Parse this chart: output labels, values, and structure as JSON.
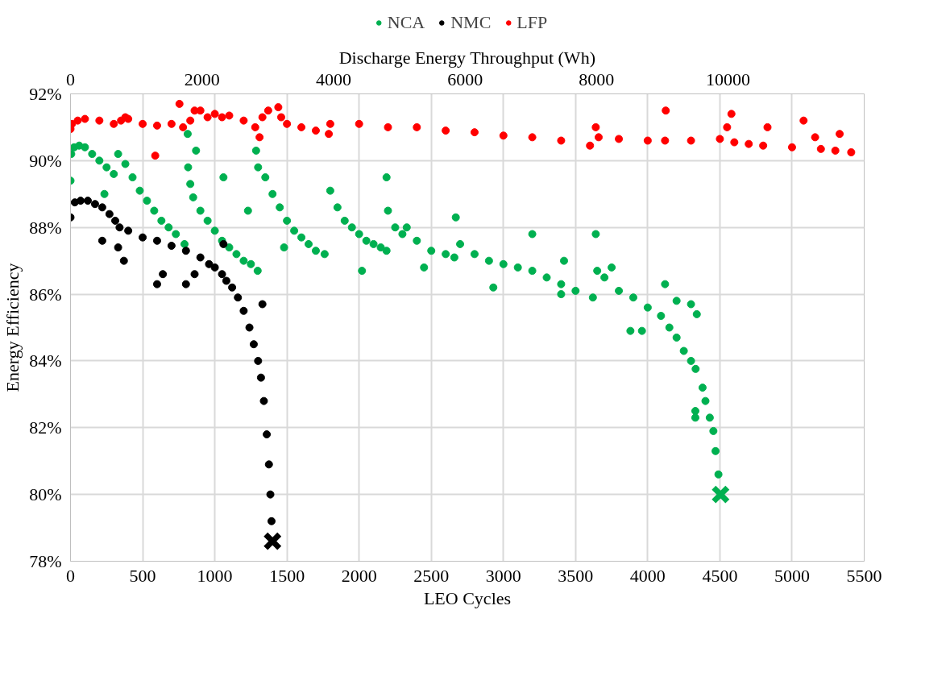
{
  "chart_data": {
    "type": "scatter",
    "xlabel": "LEO Cycles",
    "ylabel": "Energy Efficiency",
    "x2label": "Discharge Energy Throughput (Wh)",
    "xlim": [
      0,
      5500
    ],
    "xticks": [
      0,
      500,
      1000,
      1500,
      2000,
      2500,
      3000,
      3500,
      4000,
      4500,
      5000,
      5500
    ],
    "x2lim": [
      0,
      12070
    ],
    "x2ticks": [
      0,
      2000,
      4000,
      6000,
      8000,
      10000
    ],
    "ylim": [
      78,
      92
    ],
    "yticks": [
      {
        "value": 78,
        "label": "78%"
      },
      {
        "value": 80,
        "label": "80%"
      },
      {
        "value": 82,
        "label": "82%"
      },
      {
        "value": 84,
        "label": "84%"
      },
      {
        "value": 86,
        "label": "86%"
      },
      {
        "value": 88,
        "label": "88%"
      },
      {
        "value": 90,
        "label": "90%"
      },
      {
        "value": 92,
        "label": "92%"
      }
    ],
    "grid": true,
    "legend": "top",
    "marker": "circle",
    "series": [
      {
        "name": "NCA",
        "color": "#00b050",
        "x": [
          0,
          5,
          25,
          60,
          100,
          150,
          200,
          235,
          250,
          300,
          330,
          380,
          430,
          480,
          530,
          580,
          630,
          680,
          730,
          790,
          812,
          815,
          830,
          850,
          870,
          900,
          950,
          1000,
          1050,
          1060,
          1100,
          1150,
          1200,
          1230,
          1250,
          1297,
          1286,
          1300,
          1350,
          1400,
          1450,
          1480,
          1500,
          1550,
          1600,
          1650,
          1700,
          1761,
          1800,
          1850,
          1900,
          1950,
          2000,
          2020,
          2050,
          2100,
          2150,
          2190,
          2190,
          2200,
          2250,
          2300,
          2330,
          2400,
          2450,
          2500,
          2600,
          2660,
          2670,
          2700,
          2800,
          2900,
          2930,
          3000,
          3100,
          3200,
          3200,
          3300,
          3400,
          3400,
          3420,
          3500,
          3620,
          3640,
          3650,
          3700,
          3750,
          3800,
          3880,
          3900,
          3960,
          4000,
          4092,
          4120,
          4150,
          4200,
          4200,
          4250,
          4300,
          4300,
          4330,
          4330,
          4332,
          4340,
          4380,
          4400,
          4430,
          4455,
          4470,
          4490
        ],
        "values": [
          89.4,
          90.2,
          90.4,
          90.45,
          90.4,
          90.2,
          90.0,
          89.0,
          89.8,
          89.6,
          90.2,
          89.9,
          89.5,
          89.1,
          88.8,
          88.5,
          88.2,
          88.0,
          87.8,
          87.5,
          90.8,
          89.8,
          89.3,
          88.9,
          90.3,
          88.5,
          88.2,
          87.9,
          87.6,
          89.5,
          87.4,
          87.2,
          87.0,
          88.5,
          86.9,
          86.7,
          90.3,
          89.8,
          89.5,
          89.0,
          88.6,
          87.4,
          88.2,
          87.9,
          87.7,
          87.5,
          87.3,
          87.2,
          89.1,
          88.6,
          88.2,
          88.0,
          87.8,
          86.7,
          87.6,
          87.5,
          87.4,
          87.3,
          89.5,
          88.5,
          88.0,
          87.8,
          88.0,
          87.6,
          86.8,
          87.3,
          87.2,
          87.1,
          88.3,
          87.5,
          87.2,
          87.0,
          86.2,
          86.9,
          86.8,
          86.7,
          87.8,
          86.5,
          86.3,
          86.0,
          87.0,
          86.1,
          85.9,
          87.8,
          86.7,
          86.5,
          86.8,
          86.1,
          84.9,
          85.9,
          84.9,
          85.6,
          85.35,
          86.3,
          85.0,
          84.7,
          85.8,
          84.3,
          84.0,
          85.7,
          82.5,
          82.3,
          83.76,
          85.4,
          83.2,
          82.8,
          82.3,
          81.9,
          81.3,
          80.6
        ]
      },
      {
        "name": "NMC",
        "color": "#000000",
        "x": [
          0,
          30,
          70,
          120,
          170,
          220,
          220,
          270,
          310,
          330,
          340,
          370,
          400,
          500,
          600,
          600,
          640,
          700,
          800,
          800,
          860,
          900,
          960,
          1000,
          1050,
          1060,
          1080,
          1120,
          1160,
          1200,
          1240,
          1270,
          1300,
          1320,
          1330,
          1340,
          1360,
          1375,
          1385,
          1393
        ],
        "values": [
          88.3,
          88.75,
          88.8,
          88.8,
          88.7,
          88.6,
          87.6,
          88.4,
          88.2,
          87.4,
          88.0,
          87.0,
          87.9,
          87.7,
          87.6,
          86.3,
          86.6,
          87.45,
          87.3,
          86.3,
          86.6,
          87.1,
          86.9,
          86.8,
          86.6,
          87.5,
          86.4,
          86.2,
          85.9,
          85.5,
          85.0,
          84.5,
          84.0,
          83.5,
          85.7,
          82.8,
          81.8,
          80.9,
          80.0,
          79.2
        ]
      },
      {
        "name": "LFP",
        "color": "#ff0000",
        "x": [
          0,
          10,
          50,
          100,
          200,
          300,
          350,
          380,
          400,
          500,
          587,
          600,
          700,
          755,
          780,
          830,
          860,
          900,
          950,
          1000,
          1050,
          1100,
          1200,
          1280,
          1310,
          1330,
          1370,
          1440,
          1460,
          1500,
          1600,
          1700,
          1790,
          1800,
          2000,
          2200,
          2400,
          2600,
          2800,
          3000,
          3200,
          3400,
          3600,
          3640,
          3660,
          3800,
          4000,
          4120,
          4125,
          4300,
          4500,
          4550,
          4580,
          4600,
          4700,
          4800,
          4830,
          5000,
          5080,
          5160,
          5200,
          5300,
          5330,
          5410
        ],
        "values": [
          90.95,
          91.1,
          91.2,
          91.25,
          91.2,
          91.1,
          91.2,
          91.3,
          91.25,
          91.1,
          90.15,
          91.05,
          91.1,
          91.7,
          91.0,
          91.2,
          91.5,
          91.5,
          91.3,
          91.4,
          91.3,
          91.35,
          91.2,
          91.0,
          90.7,
          91.3,
          91.5,
          91.6,
          91.3,
          91.1,
          91.0,
          90.9,
          90.8,
          91.1,
          91.1,
          91.0,
          91.0,
          90.9,
          90.85,
          90.75,
          90.7,
          90.6,
          90.45,
          91.0,
          90.7,
          90.65,
          90.6,
          90.6,
          91.5,
          90.6,
          90.65,
          91.0,
          91.4,
          90.55,
          90.5,
          90.45,
          91.0,
          90.4,
          91.2,
          90.7,
          90.35,
          90.3,
          90.8,
          90.25
        ]
      },
      {
        "color": "#00b050",
        "marker": "cross",
        "x": [
          4505
        ],
        "values": [
          80.0
        ]
      },
      {
        "color": "#000000",
        "marker": "cross",
        "x": [
          1400
        ],
        "values": [
          78.6
        ]
      }
    ]
  }
}
